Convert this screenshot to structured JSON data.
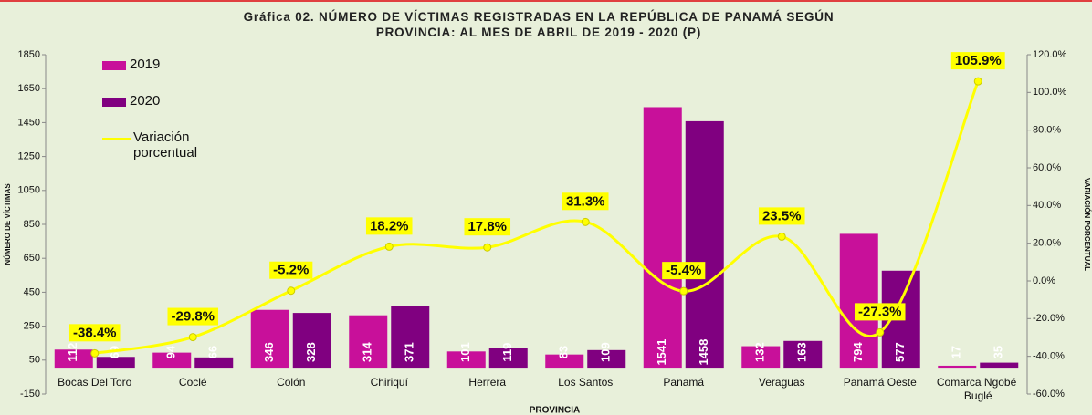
{
  "chart_data": {
    "type": "bar_line",
    "title": "Gráfica 02. NÚMERO DE VÍCTIMAS REGISTRADAS EN LA REPÚBLICA DE PANAMÁ  SEGÚN PROVINCIA: AL MES DE ABRIL DE 2019 - 2020 (P)",
    "x_label": "PROVINCIA",
    "y_label": "NÚMERO DE VÍCTIMAS",
    "y2_label": "VARIACIÓN PORCENTUAL",
    "categories": [
      "Bocas Del Toro",
      "Coclé",
      "Colón",
      "Chiriquí",
      "Herrera",
      "Los Santos",
      "Panamá",
      "Veraguas",
      "Panamá Oeste",
      "Comarca Ngobé Buglé"
    ],
    "series": [
      {
        "name": "2019",
        "color": "#c8109a",
        "type": "bar",
        "values": [
          112,
          94,
          346,
          314,
          101,
          83,
          1541,
          132,
          794,
          17
        ]
      },
      {
        "name": "2020",
        "color": "#800080",
        "type": "bar",
        "values": [
          69,
          66,
          328,
          371,
          119,
          109,
          1458,
          163,
          577,
          35
        ]
      },
      {
        "name": "Variación porcentual",
        "color": "#ffff00",
        "type": "line",
        "axis": "y2",
        "values": [
          -38.4,
          -29.8,
          -5.2,
          18.2,
          17.8,
          31.3,
          -5.4,
          23.5,
          -27.3,
          105.9
        ],
        "value_labels": [
          "-38.4%",
          "-29.8%",
          "-5.2%",
          "18.2%",
          "17.8%",
          "31.3%",
          "-5.4%",
          "23.5%",
          "-27.3%",
          "105.9%"
        ]
      }
    ],
    "ylim": [
      -150,
      1850
    ],
    "yticks": [
      -150,
      50,
      250,
      450,
      650,
      850,
      1050,
      1250,
      1450,
      1650,
      1850
    ],
    "y2lim": [
      -60,
      120
    ],
    "y2ticks": [
      {
        "value": -60,
        "label": "-60.0%"
      },
      {
        "value": -40,
        "label": "-40.0%"
      },
      {
        "value": -20,
        "label": "-20.0%"
      },
      {
        "value": 0,
        "label": "0.0%"
      },
      {
        "value": 20,
        "label": "20.0%"
      },
      {
        "value": 40,
        "label": "40.0%"
      },
      {
        "value": 60,
        "label": "60.0%"
      },
      {
        "value": 80,
        "label": "80.0%"
      },
      {
        "value": 100,
        "label": "100.0%"
      },
      {
        "value": 120,
        "label": "120.0%"
      }
    ],
    "legend": "top-left"
  }
}
